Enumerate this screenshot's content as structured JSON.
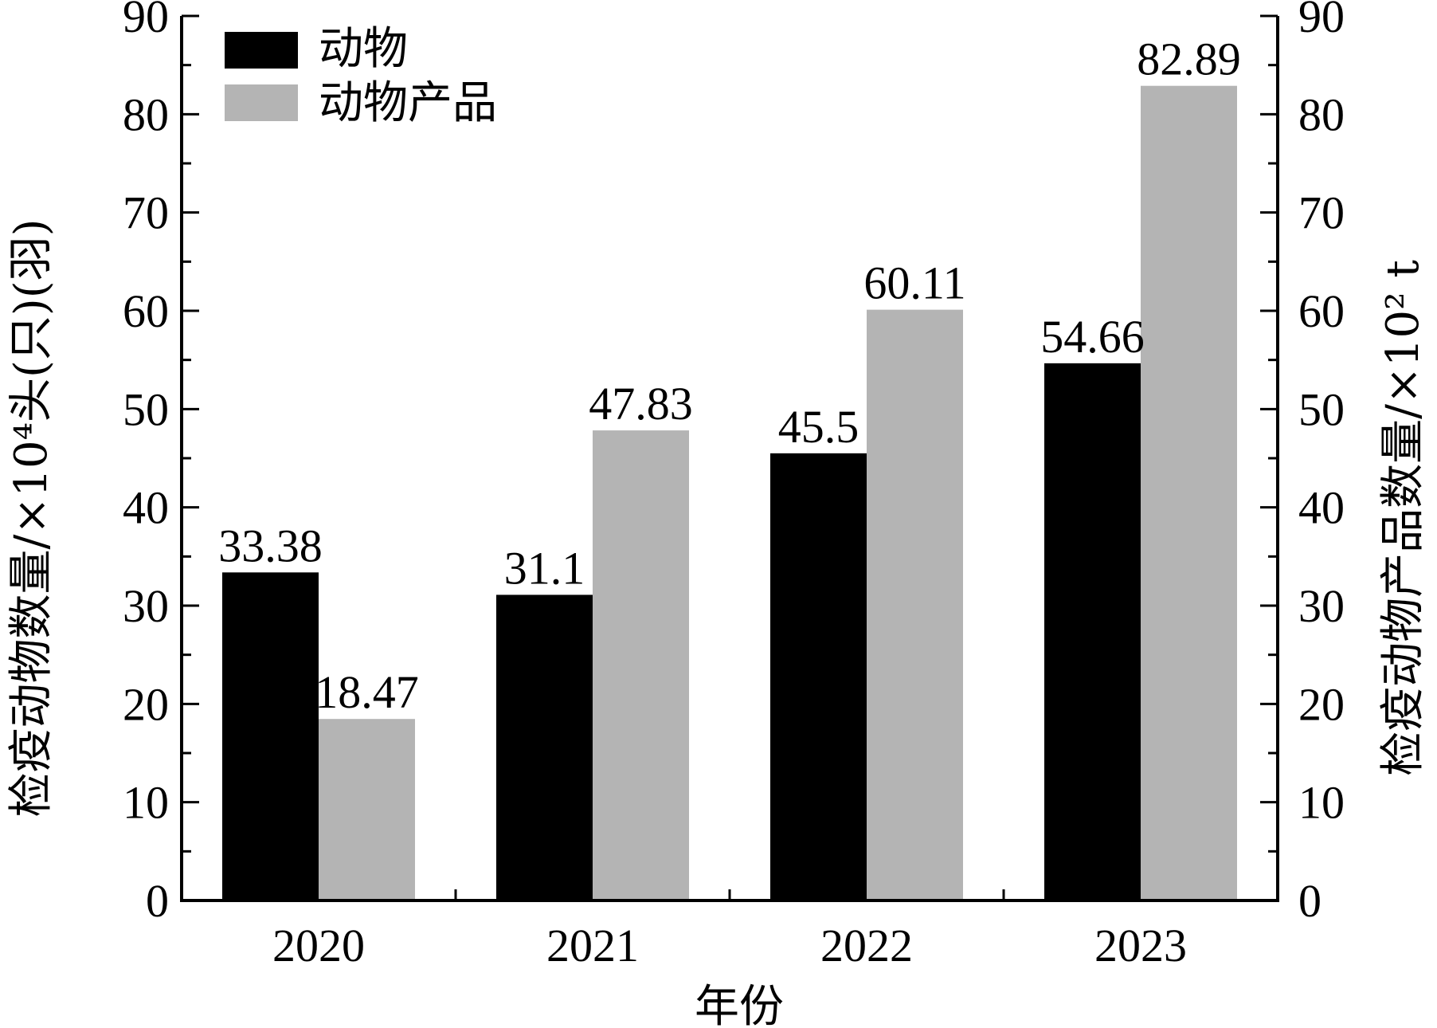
{
  "chart_data": {
    "type": "bar",
    "categories": [
      "2020",
      "2021",
      "2022",
      "2023"
    ],
    "series": [
      {
        "name": "动物",
        "values": [
          33.38,
          31.1,
          45.5,
          54.66
        ],
        "labels": [
          "33.38",
          "31.1",
          "45.5",
          "54.66"
        ],
        "color": "#000000"
      },
      {
        "name": "动物产品",
        "values": [
          18.47,
          47.83,
          60.11,
          82.89
        ],
        "labels": [
          "18.47",
          "47.83",
          "60.11",
          "82.89"
        ],
        "color": "#b4b4b4"
      }
    ],
    "xlabel": "年份",
    "ylabel_left": "检疫动物数量/×10⁴头(只)(羽)",
    "ylabel_right": "检疫动物产品数量/×10² t",
    "ylim": [
      0,
      90
    ],
    "yticks": [
      "0",
      "10",
      "20",
      "30",
      "40",
      "50",
      "60",
      "70",
      "80",
      "90"
    ],
    "grid": false,
    "legend_position": "top-left"
  }
}
